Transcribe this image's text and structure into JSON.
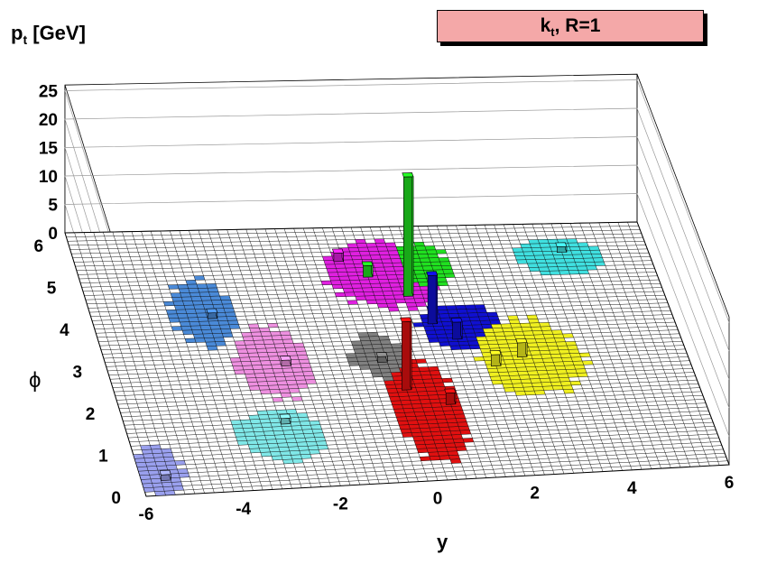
{
  "title": {
    "text": "k",
    "sub": "t",
    "rest": ", R=1"
  },
  "axes": {
    "z_label_main": "p",
    "z_label_sub": "t",
    "z_label_rest": " [GeV]",
    "y_label": "ϕ",
    "x_label": "y"
  },
  "chart_data": {
    "type": "lego",
    "xlabel": "y",
    "ylabel": "ϕ",
    "zlabel": "p_t [GeV]",
    "xlim": [
      -6,
      6
    ],
    "ylim": [
      0,
      6.283
    ],
    "zlim": [
      0,
      26
    ],
    "x_ticks": [
      "-6",
      "-4",
      "-2",
      "0",
      "2",
      "4",
      "6"
    ],
    "y_ticks": [
      "0",
      "1",
      "2",
      "3",
      "4",
      "5",
      "6"
    ],
    "z_ticks": [
      "0",
      "5",
      "10",
      "15",
      "20",
      "25"
    ],
    "grid_cells": {
      "y": 60,
      "phi": 63
    },
    "jet_regions": [
      {
        "name": "red",
        "color": "#e01010",
        "y": [
          -0.4,
          1.0
        ],
        "phi": [
          0.5,
          2.9
        ]
      },
      {
        "name": "magenta",
        "color": "#e020e0",
        "y": [
          -0.8,
          1.5
        ],
        "phi": [
          4.3,
          5.9
        ]
      },
      {
        "name": "green",
        "color": "#20e020",
        "y": [
          0.7,
          1.8
        ],
        "phi": [
          4.8,
          5.8
        ]
      },
      {
        "name": "blue",
        "color": "#1010d0",
        "y": [
          0.7,
          2.4
        ],
        "phi": [
          3.2,
          4.3
        ]
      },
      {
        "name": "yellow",
        "color": "#f0f020",
        "y": [
          1.8,
          3.8
        ],
        "phi": [
          2.0,
          3.9
        ]
      },
      {
        "name": "gray",
        "color": "#808080",
        "y": [
          -0.9,
          0.2
        ],
        "phi": [
          2.6,
          3.6
        ]
      },
      {
        "name": "pink",
        "color": "#ee90e0",
        "y": [
          -3.3,
          -1.8
        ],
        "phi": [
          2.2,
          3.9
        ]
      },
      {
        "name": "steelblue",
        "color": "#4a8ad8",
        "y": [
          -4.3,
          -3.0
        ],
        "phi": [
          3.5,
          5.1
        ]
      },
      {
        "name": "cyan-left",
        "color": "#80e8e8",
        "y": [
          -3.8,
          -2.0
        ],
        "phi": [
          0.7,
          1.9
        ]
      },
      {
        "name": "cyan-right",
        "color": "#40e0e0",
        "y": [
          3.3,
          5.0
        ],
        "phi": [
          5.0,
          5.9
        ]
      },
      {
        "name": "lavender",
        "color": "#9aa0ee",
        "y": [
          -6.0,
          -5.1
        ],
        "phi": [
          0.0,
          1.2
        ]
      }
    ],
    "towers": [
      {
        "color": "#20e020",
        "y": 0.7,
        "phi": 4.6,
        "pt": 21
      },
      {
        "color": "#e01010",
        "y": 0.0,
        "phi": 2.3,
        "pt": 12
      },
      {
        "color": "#1010d0",
        "y": 1.0,
        "phi": 3.9,
        "pt": 8.5
      },
      {
        "color": "#20e020",
        "y": 0.0,
        "phi": 5.1,
        "pt": 2
      },
      {
        "color": "#1010d0",
        "y": 1.4,
        "phi": 3.5,
        "pt": 3
      },
      {
        "color": "#f0f020",
        "y": 2.6,
        "phi": 3.0,
        "pt": 2.5
      },
      {
        "color": "#f0f020",
        "y": 2.0,
        "phi": 2.8,
        "pt": 2
      },
      {
        "color": "#e020e0",
        "y": -0.5,
        "phi": 5.5,
        "pt": 1.5
      },
      {
        "color": "#e01010",
        "y": 0.8,
        "phi": 1.9,
        "pt": 2
      },
      {
        "color": "#808080",
        "y": -0.3,
        "phi": 3.0,
        "pt": 1
      },
      {
        "color": "#ee90e0",
        "y": -2.3,
        "phi": 3.0,
        "pt": 1
      },
      {
        "color": "#4a8ad8",
        "y": -3.5,
        "phi": 4.2,
        "pt": 1
      },
      {
        "color": "#80e8e8",
        "y": -2.7,
        "phi": 1.6,
        "pt": 1
      },
      {
        "color": "#9aa0ee",
        "y": -5.5,
        "phi": 0.4,
        "pt": 1
      },
      {
        "color": "#40e0e0",
        "y": 4.2,
        "phi": 5.6,
        "pt": 1
      }
    ]
  },
  "colors": {
    "title_bg": "#f4a8a8",
    "grid": "#000000",
    "background": "#ffffff"
  }
}
